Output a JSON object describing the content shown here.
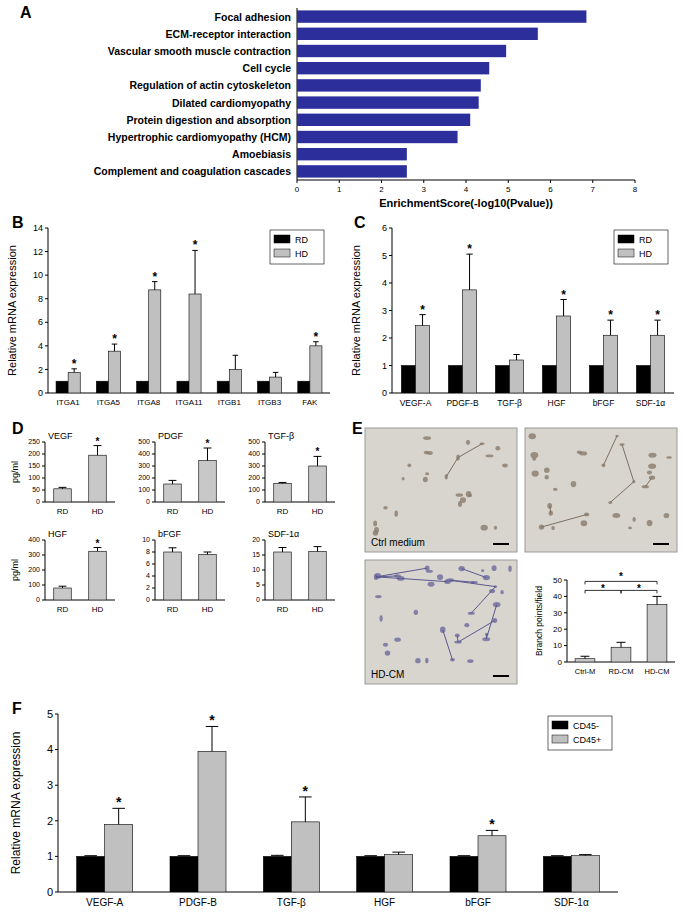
{
  "chart_data": [
    {
      "type": "bar",
      "orientation": "horizontal",
      "annotations": [
        "A"
      ],
      "categories": [
        "Focal adhesion",
        "ECM-receptor interaction",
        "Vascular smooth muscle contraction",
        "Cell cycle",
        "Regulation of actin cytoskeleton",
        "Dilated cardiomyopathy",
        "Protein digestion and absorption",
        "Hypertrophic cardiomyopathy (HCM)",
        "Amoebiasis",
        "Complement and coagulation cascades"
      ],
      "values": [
        6.85,
        5.7,
        4.95,
        4.55,
        4.35,
        4.3,
        4.1,
        3.8,
        2.6,
        2.6
      ],
      "color": "#2c2e9b",
      "xlabel": "EnrichmentScore(-log10(Pvalue))",
      "xlim": [
        0,
        8
      ],
      "xticks": [
        0,
        1,
        2,
        3,
        4,
        5,
        6,
        7,
        8
      ]
    },
    {
      "type": "bar",
      "annotations": [
        "B"
      ],
      "ylabel": "Relative mRNA expression",
      "legend": "top-right",
      "categories": [
        "ITGA1",
        "ITGA5",
        "ITGA8",
        "ITGA11",
        "ITGB1",
        "ITGB3",
        "FAK"
      ],
      "series": [
        {
          "name": "RD",
          "color": "#000000",
          "values": [
            1,
            1,
            1,
            1,
            1,
            1,
            1
          ]
        },
        {
          "name": "HD",
          "color": "#c0c0c0",
          "values": [
            1.75,
            3.55,
            8.75,
            8.4,
            2.0,
            1.35,
            4.0
          ],
          "errors": [
            0.3,
            0.6,
            0.7,
            3.7,
            1.2,
            0.4,
            0.35
          ],
          "significance": [
            "*",
            "*",
            "*",
            "*",
            null,
            null,
            "*"
          ]
        }
      ],
      "ylim": [
        0,
        14
      ],
      "yticks": [
        0,
        2,
        4,
        6,
        8,
        10,
        12,
        14
      ]
    },
    {
      "type": "bar",
      "annotations": [
        "C"
      ],
      "ylabel": "Relative mRNA expression",
      "legend": "top-right",
      "categories": [
        "VEGF-A",
        "PDGF-B",
        "TGF-β",
        "HGF",
        "bFGF",
        "SDF-1α"
      ],
      "series": [
        {
          "name": "RD",
          "color": "#000000",
          "values": [
            1,
            1,
            1,
            1,
            1,
            1
          ]
        },
        {
          "name": "HD",
          "color": "#c0c0c0",
          "values": [
            2.45,
            3.75,
            1.2,
            2.8,
            2.1,
            2.1
          ],
          "errors": [
            0.4,
            1.3,
            0.2,
            0.6,
            0.55,
            0.55
          ],
          "significance": [
            "*",
            "*",
            null,
            "*",
            "*",
            "*"
          ]
        }
      ],
      "ylim": [
        0,
        6
      ],
      "yticks": [
        0,
        1,
        2,
        3,
        4,
        5,
        6
      ]
    },
    {
      "type": "bar",
      "annotations": [
        "D"
      ],
      "title": "VEGF",
      "ylabel": "pg/ml",
      "categories": [
        "RD",
        "HD"
      ],
      "values": [
        55,
        195
      ],
      "errors": [
        6,
        40
      ],
      "color": "#c8c8c8",
      "significance": [
        null,
        "*"
      ],
      "ylim": [
        0,
        250
      ],
      "yticks": [
        0,
        50,
        100,
        150,
        200,
        250
      ]
    },
    {
      "type": "bar",
      "title": "PDGF",
      "categories": [
        "RD",
        "HD"
      ],
      "values": [
        150,
        345
      ],
      "errors": [
        30,
        105
      ],
      "color": "#c8c8c8",
      "significance": [
        null,
        "*"
      ],
      "ylim": [
        0,
        500
      ],
      "yticks": [
        0,
        100,
        200,
        300,
        400,
        500
      ]
    },
    {
      "type": "bar",
      "title": "TGF-β",
      "categories": [
        "RD",
        "HD"
      ],
      "values": [
        155,
        300
      ],
      "errors": [
        8,
        80
      ],
      "color": "#c8c8c8",
      "significance": [
        null,
        "*"
      ],
      "ylim": [
        0,
        500
      ],
      "yticks": [
        0,
        100,
        200,
        300,
        400,
        500
      ]
    },
    {
      "type": "bar",
      "title": "HGF",
      "ylabel": "pg/ml",
      "categories": [
        "RD",
        "HD"
      ],
      "values": [
        80,
        325
      ],
      "errors": [
        12,
        25
      ],
      "color": "#c8c8c8",
      "significance": [
        null,
        "*"
      ],
      "ylim": [
        0,
        400
      ],
      "yticks": [
        0,
        100,
        200,
        300,
        400
      ]
    },
    {
      "type": "bar",
      "title": "bFGF",
      "categories": [
        "RD",
        "HD"
      ],
      "values": [
        8,
        7.6
      ],
      "errors": [
        0.7,
        0.4
      ],
      "color": "#c8c8c8",
      "ylim": [
        0,
        10
      ],
      "yticks": [
        0,
        2,
        4,
        6,
        8,
        10
      ]
    },
    {
      "type": "bar",
      "title": "SDF-1α",
      "categories": [
        "RD",
        "HD"
      ],
      "values": [
        16,
        16.2
      ],
      "errors": [
        1.5,
        1.6
      ],
      "color": "#c8c8c8",
      "ylim": [
        0,
        20
      ],
      "yticks": [
        0,
        5,
        10,
        15,
        20
      ]
    },
    {
      "type": "bar",
      "annotations": [
        "E"
      ],
      "images": [
        "Ctrl medium",
        null,
        "HD-CM"
      ],
      "ylabel": "Branch points/field",
      "categories": [
        "Ctrl-M",
        "RD-CM",
        "HD-CM"
      ],
      "values": [
        2,
        9,
        35
      ],
      "errors": [
        1.5,
        3,
        5
      ],
      "color": "#c8c8c8",
      "comparisons": [
        {
          "pair": [
            0,
            1
          ],
          "label": "*"
        },
        {
          "pair": [
            0,
            2
          ],
          "label": "*"
        },
        {
          "pair": [
            1,
            2
          ],
          "label": "*"
        }
      ],
      "ylim": [
        0,
        50
      ],
      "yticks": [
        0,
        10,
        20,
        30,
        40,
        50
      ]
    },
    {
      "type": "bar",
      "annotations": [
        "F"
      ],
      "ylabel": "Relative mRNA expression",
      "legend": "top-right",
      "categories": [
        "VEGF-A",
        "PDGF-B",
        "TGF-β",
        "HGF",
        "bFGF",
        "SDF-1α"
      ],
      "series": [
        {
          "name": "CD45-",
          "color": "#000000",
          "values": [
            1,
            1,
            1,
            1,
            1,
            1
          ],
          "errors": [
            0.02,
            0.02,
            0.03,
            0.02,
            0.02,
            0.02
          ]
        },
        {
          "name": "CD45+",
          "color": "#c0c0c0",
          "values": [
            1.9,
            3.95,
            1.97,
            1.05,
            1.58,
            1.02
          ],
          "errors": [
            0.45,
            0.7,
            0.7,
            0.07,
            0.15,
            0.03
          ],
          "significance": [
            "*",
            "*",
            "*",
            null,
            "*",
            null
          ]
        }
      ],
      "ylim": [
        0,
        5
      ],
      "yticks": [
        0,
        1,
        2,
        3,
        4,
        5
      ]
    }
  ]
}
